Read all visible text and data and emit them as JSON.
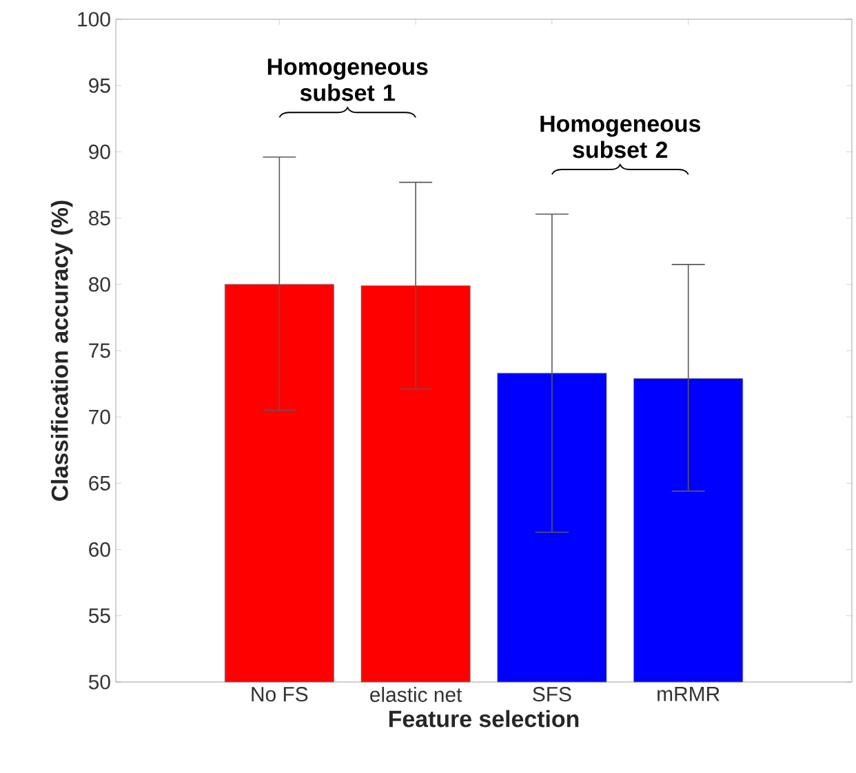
{
  "chart_data": {
    "type": "bar",
    "xlabel": "Feature selection",
    "ylabel": "Classification accuracy (%)",
    "categories": [
      "No FS",
      "elastic net",
      "SFS",
      "mRMR"
    ],
    "values": [
      80.0,
      79.9,
      73.3,
      72.9
    ],
    "colors": [
      "#ff0000",
      "#ff0000",
      "#0000ff",
      "#0000ff"
    ],
    "errors": [
      [
        70.5,
        89.6
      ],
      [
        72.1,
        87.7
      ],
      [
        61.3,
        85.3
      ],
      [
        64.4,
        81.5
      ]
    ],
    "ylim": [
      50,
      100
    ],
    "yticks": [
      50,
      55,
      60,
      65,
      70,
      75,
      80,
      85,
      90,
      95,
      100
    ],
    "annotations": [
      "Homogeneous subset 1",
      "Homogeneous subset 2"
    ]
  }
}
